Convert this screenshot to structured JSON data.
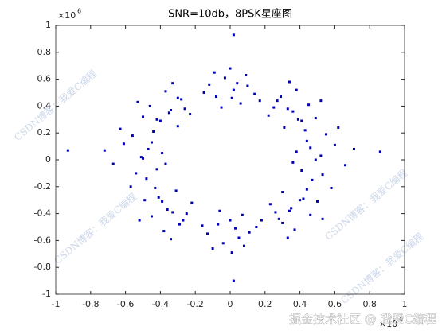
{
  "chart_data": {
    "type": "scatter",
    "title": "SNR=10db，8PSK星座图",
    "x_scale": {
      "base": "×10",
      "exponent": "6"
    },
    "y_scale": {
      "base": "×10",
      "exponent": "6"
    },
    "xlim": [
      -1,
      1
    ],
    "ylim": [
      -1,
      1
    ],
    "xticks": [
      -1,
      -0.8,
      -0.6,
      -0.4,
      -0.2,
      0,
      0.2,
      0.4,
      0.6,
      0.8,
      1
    ],
    "yticks": [
      -1,
      -0.8,
      -0.6,
      -0.4,
      -0.2,
      0,
      0.2,
      0.4,
      0.6,
      0.8,
      1
    ],
    "color": "#0000b4",
    "watermarks": [
      "CSDN博客：我爱C编程",
      "CSDN博客：我爱C编程",
      "CSDN博客：我爱C编程",
      "CSDN博客：我爱C编程"
    ],
    "footer": "掘金技术社区 @ 我爱C编程",
    "x": [
      0.52,
      0.41,
      0.6,
      0.47,
      0.55,
      0.38,
      0.66,
      0.49,
      0.58,
      0.44,
      0.71,
      0.53,
      0.36,
      0.62,
      0.46,
      0.33,
      0.41,
      0.27,
      0.45,
      0.31,
      0.38,
      0.22,
      0.49,
      0.36,
      0.29,
      0.43,
      0.52,
      0.25,
      0.39,
      0.34,
      0.02,
      -0.08,
      0.1,
      -0.03,
      0.06,
      -0.12,
      0.14,
      0.0,
      -0.05,
      0.09,
      -0.15,
      0.04,
      0.17,
      -0.09,
      0.01,
      -0.34,
      -0.42,
      -0.28,
      -0.46,
      -0.3,
      -0.37,
      -0.23,
      -0.5,
      -0.35,
      -0.3,
      -0.44,
      -0.53,
      -0.26,
      -0.4,
      -0.33,
      -0.51,
      -0.42,
      -0.61,
      -0.48,
      -0.56,
      -0.39,
      -0.67,
      -0.5,
      -0.57,
      -0.45,
      -0.72,
      -0.54,
      -0.37,
      -0.63,
      -0.47,
      -0.33,
      -0.41,
      -0.27,
      -0.45,
      -0.31,
      -0.38,
      -0.22,
      -0.49,
      -0.36,
      -0.29,
      -0.43,
      -0.52,
      -0.25,
      -0.39,
      -0.34,
      0.03,
      -0.07,
      0.11,
      -0.04,
      0.07,
      -0.13,
      0.15,
      0.01,
      -0.06,
      0.08,
      -0.16,
      0.05,
      0.18,
      -0.1,
      0.0,
      0.34,
      0.42,
      0.28,
      0.46,
      0.3,
      0.37,
      0.23,
      0.5,
      0.35,
      0.3,
      0.44,
      0.53,
      0.26,
      0.4,
      0.33,
      0.02,
      -0.93,
      0.86,
      0.02
    ],
    "values": [
      0.03,
      -0.08,
      0.11,
      -0.15,
      0.19,
      0.06,
      -0.04,
      0.0,
      -0.21,
      0.14,
      0.08,
      -0.11,
      -0.02,
      0.24,
      0.09,
      0.38,
      0.29,
      0.44,
      0.41,
      0.24,
      0.52,
      0.33,
      0.31,
      0.36,
      0.47,
      0.22,
      0.44,
      0.39,
      0.3,
      0.58,
      0.52,
      0.47,
      0.55,
      0.61,
      0.42,
      0.56,
      0.49,
      0.68,
      0.39,
      0.63,
      0.5,
      0.57,
      0.44,
      0.65,
      0.46,
      0.37,
      0.3,
      0.45,
      0.4,
      0.25,
      0.51,
      0.34,
      0.32,
      0.35,
      0.46,
      0.21,
      0.43,
      0.38,
      0.29,
      0.57,
      0.02,
      -0.07,
      0.12,
      -0.14,
      0.18,
      0.05,
      -0.03,
      0.01,
      -0.2,
      0.13,
      0.07,
      -0.1,
      -0.03,
      0.23,
      0.08,
      -0.39,
      -0.28,
      -0.45,
      -0.42,
      -0.23,
      -0.53,
      -0.32,
      -0.3,
      -0.37,
      -0.48,
      -0.21,
      -0.45,
      -0.4,
      -0.31,
      -0.59,
      -0.51,
      -0.48,
      -0.54,
      -0.62,
      -0.41,
      -0.55,
      -0.5,
      -0.69,
      -0.38,
      -0.64,
      -0.49,
      -0.58,
      -0.45,
      -0.66,
      -0.45,
      -0.38,
      -0.29,
      -0.44,
      -0.41,
      -0.24,
      -0.52,
      -0.33,
      -0.31,
      -0.36,
      -0.47,
      -0.22,
      -0.44,
      -0.39,
      -0.3,
      -0.58,
      0.93,
      0.07,
      0.06,
      -0.9
    ]
  }
}
